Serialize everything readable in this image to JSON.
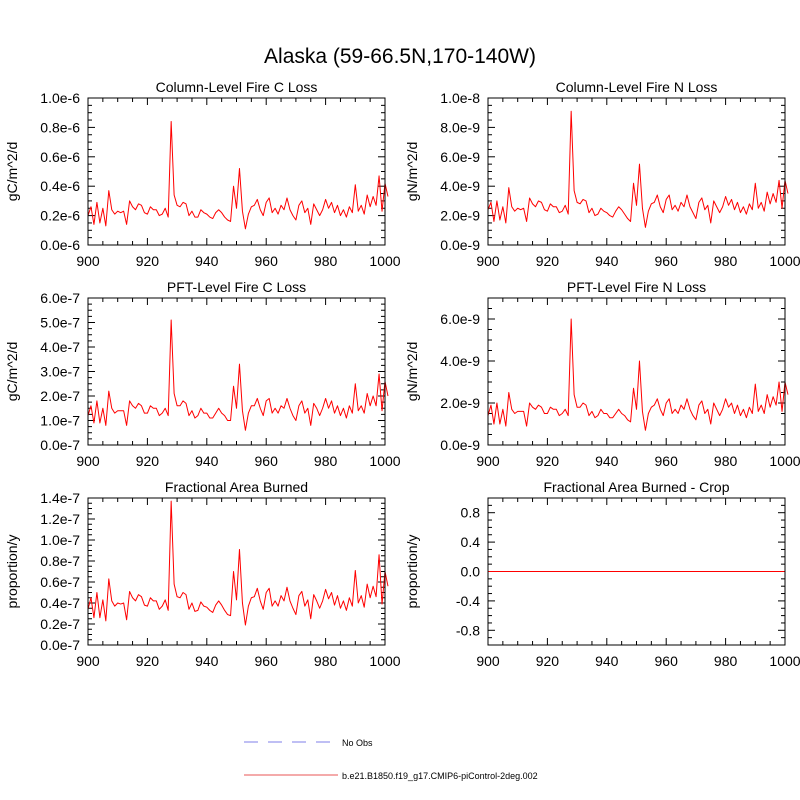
{
  "figure": {
    "title": "Alaska (59-66.5N,170-140W)"
  },
  "legend": {
    "items": [
      {
        "label": "No Obs",
        "color": "#9999ee",
        "style": "dashed"
      },
      {
        "label": "b.e21.B1850.f19_g17.CMIP6-piControl-2deg.002",
        "color": "#ee7777",
        "style": "solid"
      }
    ]
  },
  "chart_data": [
    {
      "type": "line",
      "title": "Column-Level Fire C Loss",
      "ylabel": "gC/m^2/d",
      "xlim": [
        900,
        1000
      ],
      "ylim": [
        0,
        1e-06
      ],
      "xticks": [
        "900",
        "920",
        "940",
        "960",
        "980",
        "1000"
      ],
      "yticks": [
        "0.0e-6",
        "0.2e-6",
        "0.4e-6",
        "0.6e-6",
        "0.8e-6",
        "1.0e-6"
      ],
      "series": [
        {
          "color": "#ff0000",
          "x_start": 900,
          "x_step": 1,
          "values": [
            2e-07,
            2.6e-07,
            1.4e-07,
            2.9e-07,
            1.5e-07,
            2.5e-07,
            1.3e-07,
            3.7e-07,
            2.4e-07,
            2.1e-07,
            2.3e-07,
            2.2e-07,
            2.3e-07,
            1.4e-07,
            3e-07,
            2.6e-07,
            2.4e-07,
            2.8e-07,
            2.7e-07,
            2.2e-07,
            2.1e-07,
            2.6e-07,
            2.4e-07,
            2.4e-07,
            2e-07,
            2.1e-07,
            2.5e-07,
            1.9e-07,
            8.4e-07,
            3.4e-07,
            2.7e-07,
            2.6e-07,
            2.9e-07,
            2.8e-07,
            2e-07,
            2.3e-07,
            1.9e-07,
            1.9e-07,
            2.4e-07,
            2.2e-07,
            2.1e-07,
            1.9e-07,
            1.8e-07,
            2.2e-07,
            2.4e-07,
            2.2e-07,
            1.9e-07,
            1.7e-07,
            1.6e-07,
            4e-07,
            2.5e-07,
            5.2e-07,
            2.3e-07,
            1.1e-07,
            2.1e-07,
            2.6e-07,
            2.7e-07,
            3.1e-07,
            2.4e-07,
            2e-07,
            2.9e-07,
            3.2e-07,
            2.2e-07,
            2.5e-07,
            2.1e-07,
            2.7e-07,
            2.4e-07,
            3.2e-07,
            2.4e-07,
            2e-07,
            1.7e-07,
            2.7e-07,
            3e-07,
            2.2e-07,
            2.5e-07,
            1.4e-07,
            2.8e-07,
            2.4e-07,
            2e-07,
            2.4e-07,
            3.1e-07,
            2.5e-07,
            2.9e-07,
            2.2e-07,
            2.7e-07,
            2e-07,
            2.4e-07,
            1.9e-07,
            2.6e-07,
            2.2e-07,
            4.1e-07,
            2.3e-07,
            2.7e-07,
            2.1e-07,
            3.4e-07,
            2.6e-07,
            3.3e-07,
            2.7e-07,
            4.7e-07,
            2.3e-07,
            4.2e-07,
            3.3e-07
          ]
        }
      ]
    },
    {
      "type": "line",
      "title": "Column-Level Fire N Loss",
      "ylabel": "gN/m^2/d",
      "xlim": [
        900,
        1000
      ],
      "ylim": [
        0,
        1e-08
      ],
      "xticks": [
        "900",
        "920",
        "940",
        "960",
        "980",
        "1000"
      ],
      "yticks": [
        "0.0e-9",
        "2.0e-9",
        "4.0e-9",
        "6.0e-9",
        "8.0e-9",
        "1.0e-8"
      ],
      "series": [
        {
          "color": "#ff0000",
          "x_start": 900,
          "x_step": 1,
          "values": [
            2.4e-09,
            2.9e-09,
            1.6e-09,
            3e-09,
            1.7e-09,
            2.6e-09,
            1.5e-09,
            3.9e-09,
            2.6e-09,
            2.3e-09,
            2.5e-09,
            2.4e-09,
            2.5e-09,
            1.6e-09,
            3.2e-09,
            2.8e-09,
            2.6e-09,
            3e-09,
            2.9e-09,
            2.4e-09,
            2.3e-09,
            2.8e-09,
            2.6e-09,
            2.6e-09,
            2.2e-09,
            2.3e-09,
            2.7e-09,
            2.1e-09,
            9.1e-09,
            3.7e-09,
            2.9e-09,
            2.8e-09,
            3.1e-09,
            3e-09,
            2.2e-09,
            2.5e-09,
            2e-09,
            2.1e-09,
            2.5e-09,
            2.3e-09,
            2.2e-09,
            2e-09,
            1.9e-09,
            2.3e-09,
            2.6e-09,
            2.4e-09,
            2.1e-09,
            1.8e-09,
            1.6e-09,
            4.2e-09,
            2.7e-09,
            5.5e-09,
            2.5e-09,
            1.2e-09,
            2.3e-09,
            2.8e-09,
            2.9e-09,
            3.4e-09,
            2.6e-09,
            2.2e-09,
            3.1e-09,
            3.4e-09,
            2.4e-09,
            2.7e-09,
            2.3e-09,
            2.9e-09,
            2.6e-09,
            3.4e-09,
            2.6e-09,
            2.2e-09,
            1.8e-09,
            2.9e-09,
            3.2e-09,
            2.4e-09,
            2.7e-09,
            1.5e-09,
            3e-09,
            2.6e-09,
            2.2e-09,
            2.6e-09,
            3.3e-09,
            2.7e-09,
            3.1e-09,
            2.4e-09,
            2.9e-09,
            2.2e-09,
            2.6e-09,
            2.1e-09,
            2.8e-09,
            2.4e-09,
            4.2e-09,
            2.5e-09,
            2.9e-09,
            2.3e-09,
            3.6e-09,
            2.8e-09,
            3.5e-09,
            2.9e-09,
            4.4e-09,
            2.5e-09,
            4.4e-09,
            3.5e-09
          ]
        }
      ]
    },
    {
      "type": "line",
      "title": "PFT-Level Fire C Loss",
      "ylabel": "gC/m^2/d",
      "xlim": [
        900,
        1000
      ],
      "ylim": [
        0,
        6e-07
      ],
      "xticks": [
        "900",
        "920",
        "940",
        "960",
        "980",
        "1000"
      ],
      "yticks": [
        "0.0e-7",
        "1.0e-7",
        "2.0e-7",
        "3.0e-7",
        "4.0e-7",
        "5.0e-7",
        "6.0e-7"
      ],
      "series": [
        {
          "color": "#ff0000",
          "x_start": 900,
          "x_step": 1,
          "values": [
            1.2e-07,
            1.6e-07,
            9e-08,
            1.8e-07,
            9e-08,
            1.5e-07,
            8e-08,
            2.2e-07,
            1.5e-07,
            1.3e-07,
            1.4e-07,
            1.4e-07,
            1.4e-07,
            8e-08,
            1.8e-07,
            1.6e-07,
            1.5e-07,
            1.7e-07,
            1.6e-07,
            1.3e-07,
            1.3e-07,
            1.6e-07,
            1.5e-07,
            1.5e-07,
            1.2e-07,
            1.3e-07,
            1.5e-07,
            1.2e-07,
            5.1e-07,
            2.1e-07,
            1.6e-07,
            1.6e-07,
            1.8e-07,
            1.7e-07,
            1.2e-07,
            1.4e-07,
            1.1e-07,
            1.2e-07,
            1.5e-07,
            1.3e-07,
            1.3e-07,
            1.1e-07,
            1.1e-07,
            1.3e-07,
            1.5e-07,
            1.3e-07,
            1.2e-07,
            1e-07,
            1e-07,
            2.4e-07,
            1.5e-07,
            3.3e-07,
            1.4e-07,
            6e-08,
            1.3e-07,
            1.6e-07,
            1.6e-07,
            1.9e-07,
            1.5e-07,
            1.2e-07,
            1.8e-07,
            1.9e-07,
            1.3e-07,
            1.5e-07,
            1.3e-07,
            1.6e-07,
            1.5e-07,
            1.9e-07,
            1.5e-07,
            1.2e-07,
            1e-07,
            1.6e-07,
            1.8e-07,
            1.3e-07,
            1.5e-07,
            8e-08,
            1.7e-07,
            1.5e-07,
            1.2e-07,
            1.5e-07,
            1.9e-07,
            1.5e-07,
            1.8e-07,
            1.3e-07,
            1.6e-07,
            1.2e-07,
            1.5e-07,
            1.1e-07,
            1.6e-07,
            1.3e-07,
            2.5e-07,
            1.4e-07,
            1.6e-07,
            1.3e-07,
            2.1e-07,
            1.6e-07,
            2e-07,
            1.6e-07,
            2.9e-07,
            1.4e-07,
            2.6e-07,
            2e-07
          ]
        }
      ]
    },
    {
      "type": "line",
      "title": "PFT-Level Fire N Loss",
      "ylabel": "gN/m^2/d",
      "xlim": [
        900,
        1000
      ],
      "ylim": [
        0,
        7e-09
      ],
      "xticks": [
        "900",
        "920",
        "940",
        "960",
        "980",
        "1000"
      ],
      "yticks": [
        "0.0e-9",
        "2.0e-9",
        "4.0e-9",
        "6.0e-9"
      ],
      "series": [
        {
          "color": "#ff0000",
          "x_start": 900,
          "x_step": 1,
          "values": [
            1.4e-09,
            1.9e-09,
            1e-09,
            2e-09,
            1e-09,
            1.7e-09,
            9e-10,
            2.5e-09,
            1.7e-09,
            1.5e-09,
            1.6e-09,
            1.6e-09,
            1.6e-09,
            9e-10,
            2e-09,
            1.8e-09,
            1.7e-09,
            1.9e-09,
            1.8e-09,
            1.5e-09,
            1.5e-09,
            1.8e-09,
            1.7e-09,
            1.7e-09,
            1.4e-09,
            1.5e-09,
            1.7e-09,
            1.4e-09,
            6e-09,
            2.4e-09,
            1.8e-09,
            1.8e-09,
            2e-09,
            1.9e-09,
            1.4e-09,
            1.6e-09,
            1.3e-09,
            1.4e-09,
            1.7e-09,
            1.5e-09,
            1.5e-09,
            1.3e-09,
            1.3e-09,
            1.5e-09,
            1.7e-09,
            1.5e-09,
            1.4e-09,
            1.2e-09,
            1.1e-09,
            2.7e-09,
            1.7e-09,
            4e-09,
            1.6e-09,
            7e-10,
            1.5e-09,
            1.8e-09,
            1.9e-09,
            2.2e-09,
            1.7e-09,
            1.4e-09,
            2e-09,
            2.2e-09,
            1.5e-09,
            1.7e-09,
            1.5e-09,
            1.9e-09,
            1.7e-09,
            2.2e-09,
            1.7e-09,
            1.4e-09,
            1.2e-09,
            1.9e-09,
            2.1e-09,
            1.5e-09,
            1.7e-09,
            1e-09,
            2e-09,
            1.7e-09,
            1.4e-09,
            1.7e-09,
            2.2e-09,
            1.8e-09,
            2e-09,
            1.5e-09,
            1.9e-09,
            1.4e-09,
            1.7e-09,
            1.3e-09,
            1.8e-09,
            1.5e-09,
            2.9e-09,
            1.6e-09,
            1.9e-09,
            1.5e-09,
            2.4e-09,
            1.8e-09,
            2.3e-09,
            1.9e-09,
            3e-09,
            1.6e-09,
            3e-09,
            2.4e-09
          ]
        }
      ]
    },
    {
      "type": "line",
      "title": "Fractional Area Burned",
      "ylabel": "proportion/y",
      "xlim": [
        900,
        1000
      ],
      "ylim": [
        0,
        1.4e-07
      ],
      "xticks": [
        "900",
        "920",
        "940",
        "960",
        "980",
        "1000"
      ],
      "yticks": [
        "0.0e-7",
        "0.2e-7",
        "0.4e-7",
        "0.6e-7",
        "0.8e-7",
        "1.0e-7",
        "1.2e-7",
        "1.4e-7"
      ],
      "series": [
        {
          "color": "#ff0000",
          "x_start": 900,
          "x_step": 1,
          "values": [
            3.4e-08,
            4.5e-08,
            2.6e-08,
            5e-08,
            2.6e-08,
            4.3e-08,
            2.3e-08,
            6.3e-08,
            4.2e-08,
            3.7e-08,
            4e-08,
            3.9e-08,
            4e-08,
            2.4e-08,
            5.1e-08,
            4.5e-08,
            4.2e-08,
            4.8e-08,
            4.6e-08,
            3.8e-08,
            3.7e-08,
            4.5e-08,
            4.2e-08,
            4.2e-08,
            3.4e-08,
            3.7e-08,
            4.3e-08,
            3.3e-08,
            1.37e-07,
            5.8e-08,
            4.6e-08,
            4.5e-08,
            5e-08,
            4.8e-08,
            3.4e-08,
            4e-08,
            3.2e-08,
            3.3e-08,
            4.1e-08,
            3.7e-08,
            3.6e-08,
            3.3e-08,
            3.1e-08,
            3.8e-08,
            4.2e-08,
            3.8e-08,
            3.3e-08,
            2.9e-08,
            2.8e-08,
            7e-08,
            4.3e-08,
            9.1e-08,
            4e-08,
            1.9e-08,
            3.7e-08,
            4.5e-08,
            4.6e-08,
            5.4e-08,
            4.2e-08,
            3.4e-08,
            5e-08,
            5.4e-08,
            3.7e-08,
            4.2e-08,
            3.7e-08,
            4.7e-08,
            4.2e-08,
            5.5e-08,
            4.2e-08,
            3.5e-08,
            2.9e-08,
            4.7e-08,
            5.1e-08,
            3.7e-08,
            4.3e-08,
            2.5e-08,
            4.8e-08,
            4.2e-08,
            3.5e-08,
            4.2e-08,
            5.3e-08,
            4.4e-08,
            5e-08,
            3.8e-08,
            4.7e-08,
            3.5e-08,
            4.2e-08,
            3.3e-08,
            4.5e-08,
            3.7e-08,
            7.1e-08,
            4e-08,
            4.7e-08,
            3.6e-08,
            5.8e-08,
            4.5e-08,
            5.6e-08,
            4.6e-08,
            8.6e-08,
            3.9e-08,
            7e-08,
            5.6e-08
          ]
        }
      ]
    },
    {
      "type": "line",
      "title": "Fractional Area Burned - Crop",
      "ylabel": "proportion/y",
      "xlim": [
        900,
        1000
      ],
      "ylim": [
        -1.0,
        1.0
      ],
      "xticks": [
        "900",
        "920",
        "940",
        "960",
        "980",
        "1000"
      ],
      "yticks": [
        "-0.8",
        "-0.4",
        "0.0",
        "0.4",
        "0.8"
      ],
      "series": [
        {
          "color": "#ff0000",
          "x": [
            900,
            1000
          ],
          "values": [
            0.0,
            0.0
          ]
        }
      ]
    }
  ]
}
